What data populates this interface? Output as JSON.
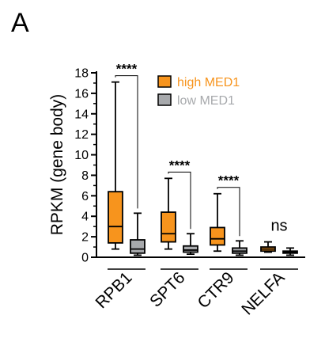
{
  "panel_label": "A",
  "colors": {
    "high": "#f7941d",
    "low": "#a7a9ac",
    "axis": "#000000"
  },
  "chart_data": {
    "type": "box",
    "ylabel": "RPKM (gene body)",
    "ylim": [
      0,
      18
    ],
    "yticks": [
      0,
      2,
      4,
      6,
      8,
      10,
      12,
      14,
      16,
      18
    ],
    "categories": [
      "RPB1",
      "SPT6",
      "CTR9",
      "NELFA"
    ],
    "legend": {
      "placement": "top-right",
      "entries": [
        "high MED1",
        "low MED1"
      ]
    },
    "series": [
      {
        "name": "high MED1",
        "color": "#f7941d",
        "boxes": [
          {
            "min": 0.8,
            "q1": 1.4,
            "median": 3.0,
            "q3": 6.4,
            "max": 17.1
          },
          {
            "min": 0.8,
            "q1": 1.5,
            "median": 2.3,
            "q3": 4.4,
            "max": 7.7
          },
          {
            "min": 0.6,
            "q1": 1.2,
            "median": 1.8,
            "q3": 2.9,
            "max": 6.2
          },
          {
            "min": 0.5,
            "q1": 0.6,
            "median": 0.8,
            "q3": 1.0,
            "max": 1.5
          }
        ]
      },
      {
        "name": "low MED1",
        "color": "#a7a9ac",
        "boxes": [
          {
            "min": 0.2,
            "q1": 0.4,
            "median": 0.8,
            "q3": 1.7,
            "max": 4.3
          },
          {
            "min": 0.3,
            "q1": 0.5,
            "median": 0.7,
            "q3": 1.1,
            "max": 2.3
          },
          {
            "min": 0.2,
            "q1": 0.4,
            "median": 0.6,
            "q3": 0.9,
            "max": 1.6
          },
          {
            "min": 0.2,
            "q1": 0.4,
            "median": 0.5,
            "q3": 0.6,
            "max": 0.9
          }
        ]
      }
    ],
    "significance": [
      "****",
      "****",
      "****",
      "ns"
    ]
  }
}
